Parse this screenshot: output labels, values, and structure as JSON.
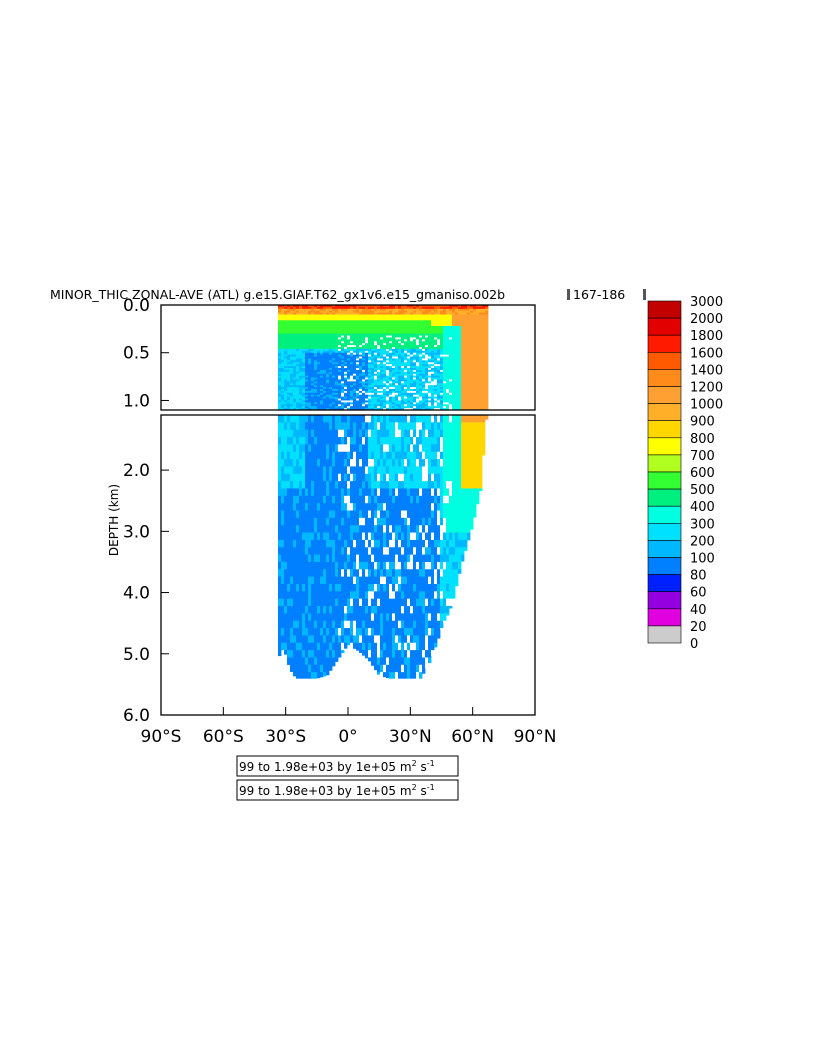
{
  "chart_data": {
    "type": "heatmap",
    "title": "MINOR_THIC ZONAL-AVE (ATL) g.e15.GIAF.T62_gx1v6.e15_gmaniso.002b",
    "title_years": "167-186",
    "ylabel": "DEPTH (km)",
    "xlabel": "",
    "x_ticks": [
      "90°S",
      "60°S",
      "30°S",
      "0°",
      "30°N",
      "60°N",
      "90°N"
    ],
    "x_tick_values": [
      -90,
      -60,
      -30,
      0,
      30,
      60,
      90
    ],
    "xlim": [
      -90,
      90
    ],
    "upper_panel": {
      "ylim": [
        0.0,
        1.1
      ],
      "y_ticks": [
        "0.0",
        "0.5",
        "1.0"
      ],
      "y_tick_values": [
        0.0,
        0.5,
        1.0
      ]
    },
    "lower_panel": {
      "ylim": [
        1.1,
        6.0
      ],
      "y_ticks": [
        "2.0",
        "3.0",
        "4.0",
        "5.0",
        "6.0"
      ],
      "y_tick_values": [
        2.0,
        3.0,
        4.0,
        5.0,
        6.0
      ]
    },
    "colorbar": {
      "levels": [
        "3000",
        "2000",
        "1800",
        "1600",
        "1400",
        "1200",
        "1000",
        "900",
        "800",
        "700",
        "600",
        "500",
        "400",
        "300",
        "200",
        "100",
        "80",
        "60",
        "40",
        "20",
        "0"
      ],
      "colors": [
        "#c20000",
        "#e20000",
        "#ff1a00",
        "#ff5a00",
        "#ff8c1a",
        "#ffa033",
        "#ffb028",
        "#ffd700",
        "#ffff00",
        "#b0ff20",
        "#33ff33",
        "#00f080",
        "#00ffe0",
        "#00e0ff",
        "#00b8ff",
        "#0080ff",
        "#0020ff",
        "#9400e0",
        "#e000e0",
        "#cccccc",
        "#707070"
      ]
    },
    "field": {
      "upper_fill_depth": 1.1,
      "columns": [
        {
          "lat": -34,
          "bottom": 5.1
        },
        {
          "lat": -31,
          "bottom": 4.9
        },
        {
          "lat": -28,
          "bottom": 5.25
        },
        {
          "lat": -25,
          "bottom": 5.4
        },
        {
          "lat": -20,
          "bottom": 5.4
        },
        {
          "lat": -15,
          "bottom": 5.4
        },
        {
          "lat": -10,
          "bottom": 5.35
        },
        {
          "lat": -5,
          "bottom": 5.1
        },
        {
          "lat": 0,
          "bottom": 4.85
        },
        {
          "lat": 5,
          "bottom": 4.95
        },
        {
          "lat": 10,
          "bottom": 5.1
        },
        {
          "lat": 15,
          "bottom": 5.35
        },
        {
          "lat": 20,
          "bottom": 5.4
        },
        {
          "lat": 25,
          "bottom": 5.4
        },
        {
          "lat": 30,
          "bottom": 5.4
        },
        {
          "lat": 35,
          "bottom": 5.4
        },
        {
          "lat": 40,
          "bottom": 5.1
        },
        {
          "lat": 45,
          "bottom": 4.6
        },
        {
          "lat": 50,
          "bottom": 4.2
        },
        {
          "lat": 55,
          "bottom": 3.5
        },
        {
          "lat": 60,
          "bottom": 2.9
        },
        {
          "lat": 64,
          "bottom": 2.3
        },
        {
          "lat": 66,
          "bottom": 1.4
        },
        {
          "lat": 68,
          "bottom": 0.7
        }
      ]
    },
    "contour_info": [
      {
        "text": "99 to 1.98e+03 by 1e+05 m",
        "sup": "2",
        "tail": " s",
        "sup2": "-1"
      },
      {
        "text": "99 to 1.98e+03 by 1e+05 m",
        "sup": "2",
        "tail": " s",
        "sup2": "-1"
      }
    ]
  }
}
